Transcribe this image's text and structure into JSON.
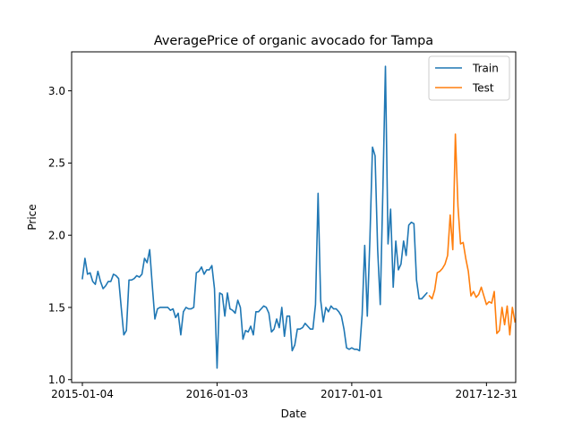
{
  "chart_data": {
    "type": "line",
    "title": "AveragePrice of organic avocado for Tampa",
    "xlabel": "Date",
    "ylabel": "Price",
    "x_axis": {
      "type": "date",
      "range": [
        "2014-12-06",
        "2018-03-20"
      ],
      "ticks": [
        "2015-01-04",
        "2016-01-03",
        "2017-01-01",
        "2017-12-31"
      ]
    },
    "y_axis": {
      "range": [
        0.98,
        3.27
      ],
      "ticks": [
        1.0,
        1.5,
        2.0,
        2.5,
        3.0
      ],
      "tick_labels": [
        "1.0",
        "1.5",
        "2.0",
        "2.5",
        "3.0"
      ]
    },
    "grid": false,
    "legend": {
      "placement": "top-right",
      "entries": [
        "Train",
        "Test"
      ]
    },
    "series": [
      {
        "name": "Train",
        "color": "#1f77b4",
        "points": [
          [
            "2015-01-04",
            1.7
          ],
          [
            "2015-01-11",
            1.84
          ],
          [
            "2015-01-18",
            1.73
          ],
          [
            "2015-01-25",
            1.74
          ],
          [
            "2015-02-01",
            1.68
          ],
          [
            "2015-02-08",
            1.66
          ],
          [
            "2015-02-15",
            1.75
          ],
          [
            "2015-02-22",
            1.68
          ],
          [
            "2015-03-01",
            1.63
          ],
          [
            "2015-03-08",
            1.65
          ],
          [
            "2015-03-15",
            1.68
          ],
          [
            "2015-03-22",
            1.68
          ],
          [
            "2015-03-29",
            1.73
          ],
          [
            "2015-04-05",
            1.72
          ],
          [
            "2015-04-12",
            1.7
          ],
          [
            "2015-04-19",
            1.5
          ],
          [
            "2015-04-26",
            1.31
          ],
          [
            "2015-05-03",
            1.34
          ],
          [
            "2015-05-10",
            1.69
          ],
          [
            "2015-05-17",
            1.69
          ],
          [
            "2015-05-24",
            1.7
          ],
          [
            "2015-05-31",
            1.72
          ],
          [
            "2015-06-07",
            1.71
          ],
          [
            "2015-06-14",
            1.73
          ],
          [
            "2015-06-21",
            1.84
          ],
          [
            "2015-06-28",
            1.81
          ],
          [
            "2015-07-05",
            1.9
          ],
          [
            "2015-07-12",
            1.65
          ],
          [
            "2015-07-19",
            1.42
          ],
          [
            "2015-07-26",
            1.49
          ],
          [
            "2015-08-02",
            1.5
          ],
          [
            "2015-08-09",
            1.5
          ],
          [
            "2015-08-16",
            1.5
          ],
          [
            "2015-08-23",
            1.5
          ],
          [
            "2015-08-30",
            1.48
          ],
          [
            "2015-09-06",
            1.49
          ],
          [
            "2015-09-13",
            1.43
          ],
          [
            "2015-09-20",
            1.46
          ],
          [
            "2015-09-27",
            1.31
          ],
          [
            "2015-10-04",
            1.47
          ],
          [
            "2015-10-11",
            1.5
          ],
          [
            "2015-10-18",
            1.49
          ],
          [
            "2015-10-25",
            1.49
          ],
          [
            "2015-11-01",
            1.5
          ],
          [
            "2015-11-08",
            1.74
          ],
          [
            "2015-11-15",
            1.75
          ],
          [
            "2015-11-22",
            1.78
          ],
          [
            "2015-11-29",
            1.73
          ],
          [
            "2015-12-06",
            1.76
          ],
          [
            "2015-12-13",
            1.76
          ],
          [
            "2015-12-20",
            1.79
          ],
          [
            "2015-12-27",
            1.63
          ],
          [
            "2016-01-03",
            1.08
          ],
          [
            "2016-01-10",
            1.6
          ],
          [
            "2016-01-17",
            1.59
          ],
          [
            "2016-01-24",
            1.44
          ],
          [
            "2016-01-31",
            1.6
          ],
          [
            "2016-02-07",
            1.49
          ],
          [
            "2016-02-14",
            1.48
          ],
          [
            "2016-02-21",
            1.46
          ],
          [
            "2016-02-28",
            1.55
          ],
          [
            "2016-03-06",
            1.5
          ],
          [
            "2016-03-13",
            1.28
          ],
          [
            "2016-03-20",
            1.34
          ],
          [
            "2016-03-27",
            1.33
          ],
          [
            "2016-04-03",
            1.37
          ],
          [
            "2016-04-10",
            1.31
          ],
          [
            "2016-04-17",
            1.47
          ],
          [
            "2016-04-24",
            1.47
          ],
          [
            "2016-05-01",
            1.49
          ],
          [
            "2016-05-08",
            1.51
          ],
          [
            "2016-05-15",
            1.5
          ],
          [
            "2016-05-22",
            1.46
          ],
          [
            "2016-05-29",
            1.33
          ],
          [
            "2016-06-05",
            1.35
          ],
          [
            "2016-06-12",
            1.42
          ],
          [
            "2016-06-19",
            1.36
          ],
          [
            "2016-06-26",
            1.5
          ],
          [
            "2016-07-03",
            1.3
          ],
          [
            "2016-07-10",
            1.44
          ],
          [
            "2016-07-17",
            1.44
          ],
          [
            "2016-07-24",
            1.2
          ],
          [
            "2016-07-31",
            1.24
          ],
          [
            "2016-08-07",
            1.35
          ],
          [
            "2016-08-14",
            1.35
          ],
          [
            "2016-08-21",
            1.36
          ],
          [
            "2016-08-28",
            1.39
          ],
          [
            "2016-09-04",
            1.37
          ],
          [
            "2016-09-11",
            1.35
          ],
          [
            "2016-09-18",
            1.35
          ],
          [
            "2016-09-25",
            1.52
          ],
          [
            "2016-10-02",
            2.29
          ],
          [
            "2016-10-09",
            1.55
          ],
          [
            "2016-10-16",
            1.4
          ],
          [
            "2016-10-23",
            1.5
          ],
          [
            "2016-10-30",
            1.47
          ],
          [
            "2016-11-06",
            1.51
          ],
          [
            "2016-11-13",
            1.49
          ],
          [
            "2016-11-20",
            1.49
          ],
          [
            "2016-11-27",
            1.47
          ],
          [
            "2016-12-04",
            1.44
          ],
          [
            "2016-12-11",
            1.35
          ],
          [
            "2016-12-18",
            1.22
          ],
          [
            "2016-12-25",
            1.21
          ],
          [
            "2017-01-01",
            1.22
          ],
          [
            "2017-01-08",
            1.21
          ],
          [
            "2017-01-15",
            1.21
          ],
          [
            "2017-01-22",
            1.2
          ],
          [
            "2017-01-29",
            1.45
          ],
          [
            "2017-02-05",
            1.93
          ],
          [
            "2017-02-12",
            1.44
          ],
          [
            "2017-02-19",
            1.97
          ],
          [
            "2017-02-26",
            2.61
          ],
          [
            "2017-03-05",
            2.55
          ],
          [
            "2017-03-12",
            1.9
          ],
          [
            "2017-03-19",
            1.52
          ],
          [
            "2017-03-26",
            2.3
          ],
          [
            "2017-04-02",
            3.17
          ],
          [
            "2017-04-09",
            1.94
          ],
          [
            "2017-04-16",
            2.18
          ],
          [
            "2017-04-23",
            1.64
          ],
          [
            "2017-04-30",
            1.96
          ],
          [
            "2017-05-07",
            1.76
          ],
          [
            "2017-05-14",
            1.8
          ],
          [
            "2017-05-21",
            1.96
          ],
          [
            "2017-05-28",
            1.86
          ],
          [
            "2017-06-04",
            2.07
          ],
          [
            "2017-06-11",
            2.09
          ],
          [
            "2017-06-18",
            2.08
          ],
          [
            "2017-06-25",
            1.69
          ],
          [
            "2017-07-02",
            1.56
          ],
          [
            "2017-07-09",
            1.56
          ],
          [
            "2017-07-16",
            1.58
          ],
          [
            "2017-07-23",
            1.6
          ]
        ]
      },
      {
        "name": "Test",
        "color": "#ff7f0e",
        "points": [
          [
            "2017-07-30",
            1.58
          ],
          [
            "2017-08-06",
            1.56
          ],
          [
            "2017-08-13",
            1.62
          ],
          [
            "2017-08-20",
            1.74
          ],
          [
            "2017-08-27",
            1.75
          ],
          [
            "2017-09-03",
            1.77
          ],
          [
            "2017-09-10",
            1.8
          ],
          [
            "2017-09-17",
            1.86
          ],
          [
            "2017-09-24",
            2.14
          ],
          [
            "2017-10-01",
            1.9
          ],
          [
            "2017-10-08",
            2.7
          ],
          [
            "2017-10-15",
            2.2
          ],
          [
            "2017-10-22",
            1.94
          ],
          [
            "2017-10-29",
            1.95
          ],
          [
            "2017-11-05",
            1.84
          ],
          [
            "2017-11-12",
            1.75
          ],
          [
            "2017-11-19",
            1.58
          ],
          [
            "2017-11-26",
            1.61
          ],
          [
            "2017-12-03",
            1.57
          ],
          [
            "2017-12-10",
            1.59
          ],
          [
            "2017-12-17",
            1.64
          ],
          [
            "2017-12-24",
            1.58
          ],
          [
            "2017-12-31",
            1.52
          ],
          [
            "2018-01-07",
            1.54
          ],
          [
            "2018-01-14",
            1.53
          ],
          [
            "2018-01-21",
            1.61
          ],
          [
            "2018-01-28",
            1.32
          ],
          [
            "2018-02-04",
            1.34
          ],
          [
            "2018-02-11",
            1.5
          ],
          [
            "2018-02-18",
            1.38
          ],
          [
            "2018-02-25",
            1.51
          ],
          [
            "2018-03-04",
            1.31
          ],
          [
            "2018-03-11",
            1.5
          ],
          [
            "2018-03-18",
            1.4
          ]
        ]
      }
    ]
  }
}
